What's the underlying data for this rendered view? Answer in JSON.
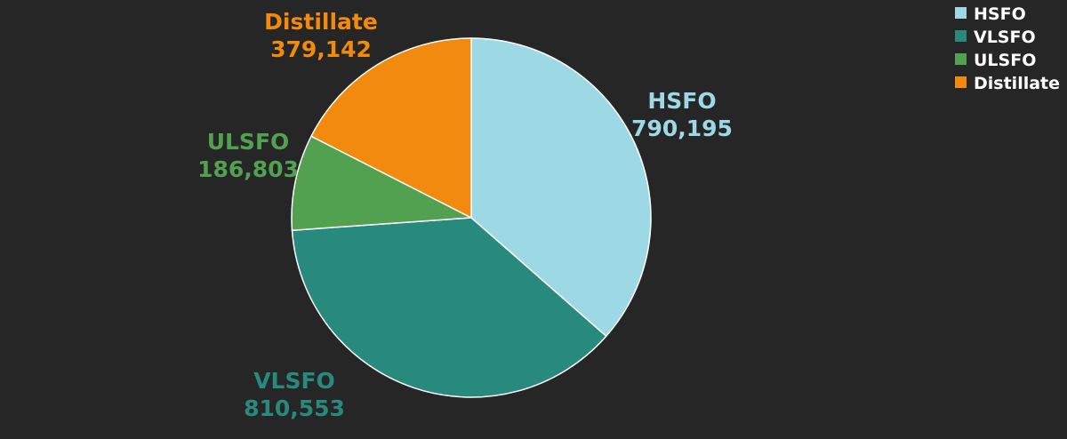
{
  "chart_data": {
    "type": "pie",
    "title": "",
    "start_angle_deg": 0,
    "direction": "clockwise",
    "legend_position": "top-right",
    "slices": [
      {
        "name": "HSFO",
        "value": 790195,
        "label": "790,195",
        "color": "#9dd9e4"
      },
      {
        "name": "VLSFO",
        "value": 810553,
        "label": "810,553",
        "color": "#278a7d"
      },
      {
        "name": "ULSFO",
        "value": 186803,
        "label": "186,803",
        "color": "#52a150"
      },
      {
        "name": "Distillate",
        "value": 379142,
        "label": "379,142",
        "color": "#f28a0f"
      }
    ]
  }
}
